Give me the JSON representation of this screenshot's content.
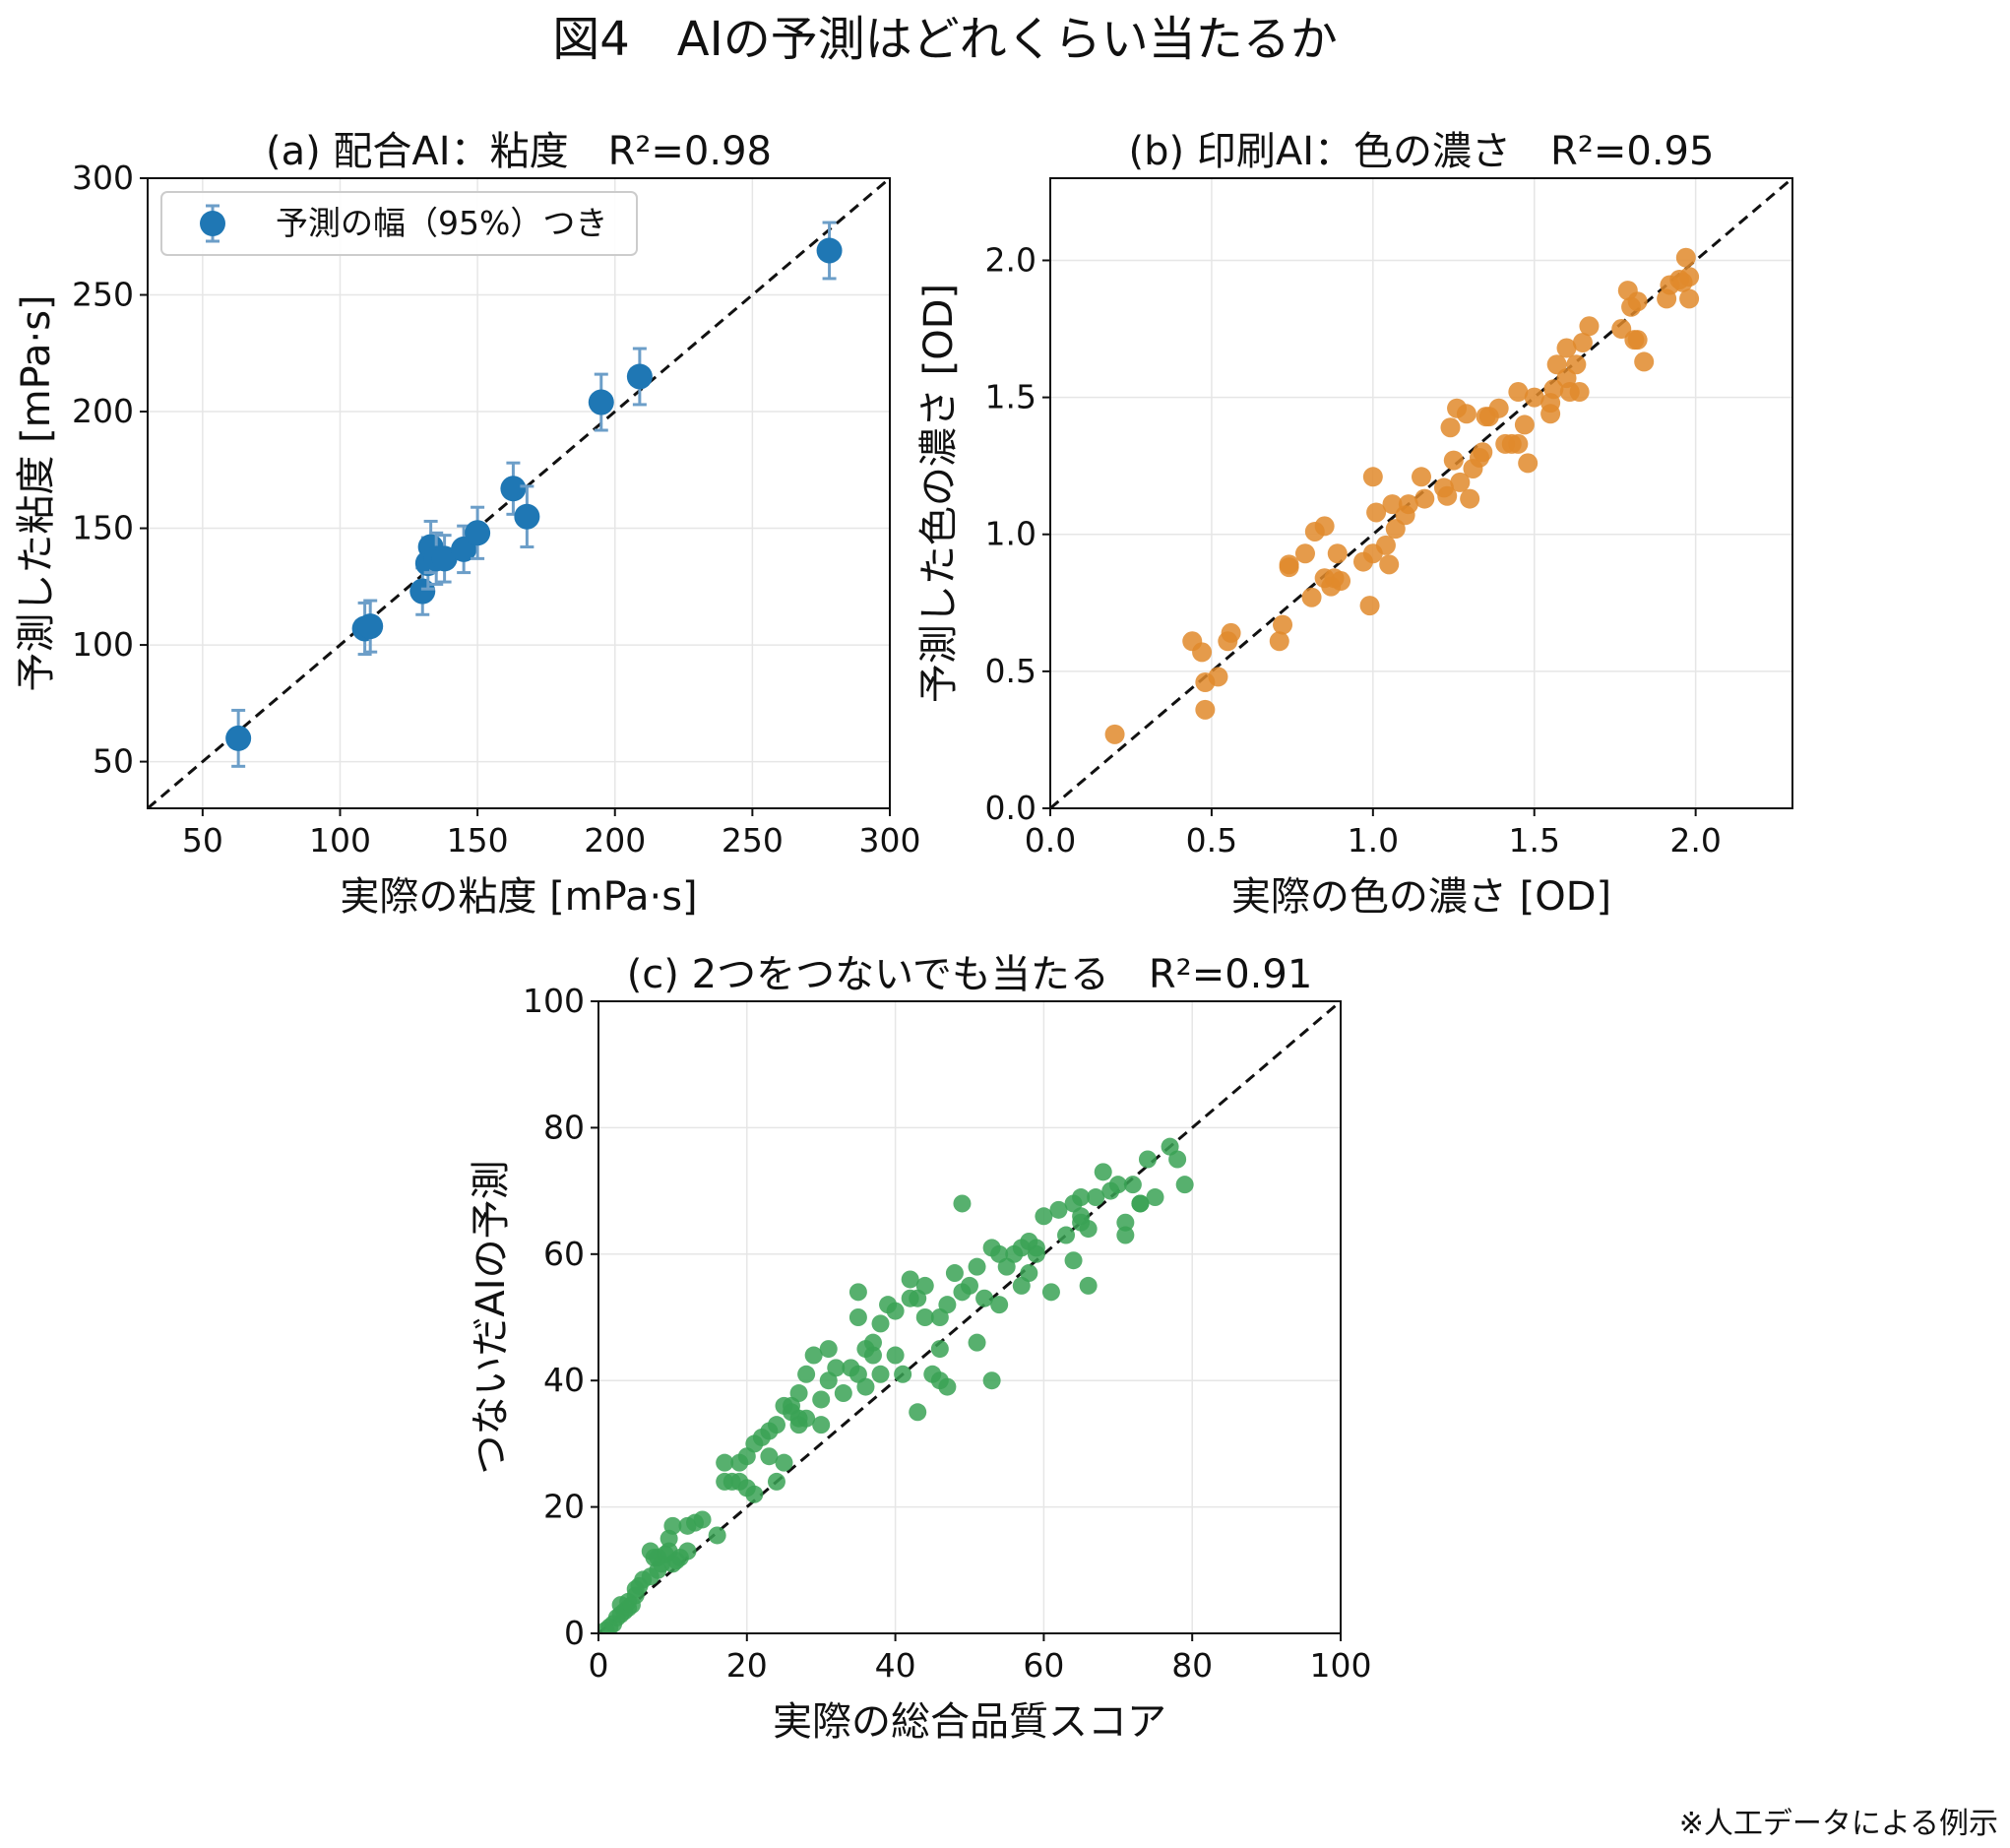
{
  "figure": {
    "title": "図4　AIの予測はどれくらい当たるか",
    "footnote": "※人工データによる例示"
  },
  "colors": {
    "blue": "#1f77b4",
    "orange": "#e08a2b",
    "green": "#3aa255",
    "errorbar": "#6c9ec8",
    "grid": "#e6e6e6"
  },
  "chart_data": [
    {
      "id": "a",
      "type": "scatter",
      "title": "(a) 配合AI：粘度　R²=0.98",
      "xlabel": "実際の粘度 [mPa·s]",
      "ylabel": "予測した粘度 [mPa·s]",
      "xlim": [
        30,
        300
      ],
      "ylim": [
        30,
        300
      ],
      "xticks": [
        50,
        100,
        150,
        200,
        250,
        300
      ],
      "yticks": [
        50,
        100,
        150,
        200,
        250,
        300
      ],
      "grid": true,
      "legend": {
        "position": "top-left",
        "label": "予測の幅（95%）つき"
      },
      "identity_line": true,
      "series": [
        {
          "color": "blue",
          "error_bars": true,
          "points": [
            [
              63,
              60,
              12
            ],
            [
              109,
              107,
              11
            ],
            [
              111,
              108,
              11
            ],
            [
              130,
              123,
              10
            ],
            [
              132,
              135,
              11
            ],
            [
              133,
              142,
              11
            ],
            [
              135,
              137,
              11
            ],
            [
              138,
              137,
              10
            ],
            [
              145,
              141,
              10
            ],
            [
              150,
              148,
              11
            ],
            [
              163,
              167,
              11
            ],
            [
              168,
              155,
              13
            ],
            [
              195,
              204,
              12
            ],
            [
              209,
              215,
              12
            ],
            [
              278,
              269,
              12
            ]
          ]
        }
      ]
    },
    {
      "id": "b",
      "type": "scatter",
      "title": "(b) 印刷AI：色の濃さ　R²=0.95",
      "xlabel": "実際の色の濃さ [OD]",
      "ylabel": "予測した色の濃さ [OD]",
      "xlim": [
        0,
        2.3
      ],
      "ylim": [
        0,
        2.3
      ],
      "xticks": [
        0.0,
        0.5,
        1.0,
        1.5,
        2.0
      ],
      "yticks": [
        0.0,
        0.5,
        1.0,
        1.5,
        2.0
      ],
      "tick_format": "fixed1",
      "grid": true,
      "identity_line": true,
      "series": [
        {
          "color": "orange",
          "points": [
            [
              0.2,
              0.27
            ],
            [
              0.44,
              0.61
            ],
            [
              0.47,
              0.57
            ],
            [
              0.48,
              0.46
            ],
            [
              0.48,
              0.36
            ],
            [
              0.52,
              0.48
            ],
            [
              0.55,
              0.61
            ],
            [
              0.56,
              0.64
            ],
            [
              0.71,
              0.61
            ],
            [
              0.72,
              0.67
            ],
            [
              0.74,
              0.89
            ],
            [
              0.74,
              0.88
            ],
            [
              0.79,
              0.93
            ],
            [
              0.81,
              0.77
            ],
            [
              0.82,
              1.01
            ],
            [
              0.85,
              0.84
            ],
            [
              0.85,
              1.03
            ],
            [
              0.87,
              0.81
            ],
            [
              0.88,
              0.84
            ],
            [
              0.89,
              0.93
            ],
            [
              0.9,
              0.83
            ],
            [
              0.97,
              0.9
            ],
            [
              0.99,
              0.74
            ],
            [
              1.0,
              1.21
            ],
            [
              1.0,
              0.93
            ],
            [
              1.01,
              1.08
            ],
            [
              1.04,
              0.96
            ],
            [
              1.05,
              0.89
            ],
            [
              1.06,
              1.11
            ],
            [
              1.07,
              1.02
            ],
            [
              1.1,
              1.07
            ],
            [
              1.11,
              1.11
            ],
            [
              1.15,
              1.21
            ],
            [
              1.16,
              1.13
            ],
            [
              1.22,
              1.17
            ],
            [
              1.23,
              1.14
            ],
            [
              1.24,
              1.39
            ],
            [
              1.25,
              1.27
            ],
            [
              1.26,
              1.46
            ],
            [
              1.27,
              1.19
            ],
            [
              1.29,
              1.44
            ],
            [
              1.3,
              1.13
            ],
            [
              1.31,
              1.24
            ],
            [
              1.33,
              1.28
            ],
            [
              1.34,
              1.3
            ],
            [
              1.35,
              1.43
            ],
            [
              1.36,
              1.43
            ],
            [
              1.39,
              1.46
            ],
            [
              1.41,
              1.33
            ],
            [
              1.43,
              1.33
            ],
            [
              1.45,
              1.33
            ],
            [
              1.45,
              1.52
            ],
            [
              1.47,
              1.4
            ],
            [
              1.48,
              1.26
            ],
            [
              1.5,
              1.5
            ],
            [
              1.55,
              1.44
            ],
            [
              1.55,
              1.48
            ],
            [
              1.56,
              1.53
            ],
            [
              1.57,
              1.62
            ],
            [
              1.6,
              1.57
            ],
            [
              1.6,
              1.68
            ],
            [
              1.61,
              1.52
            ],
            [
              1.63,
              1.62
            ],
            [
              1.64,
              1.52
            ],
            [
              1.65,
              1.7
            ],
            [
              1.67,
              1.76
            ],
            [
              1.77,
              1.75
            ],
            [
              1.79,
              1.89
            ],
            [
              1.8,
              1.83
            ],
            [
              1.81,
              1.71
            ],
            [
              1.82,
              1.85
            ],
            [
              1.82,
              1.71
            ],
            [
              1.84,
              1.63
            ],
            [
              1.91,
              1.86
            ],
            [
              1.92,
              1.91
            ],
            [
              1.95,
              1.93
            ],
            [
              1.96,
              1.92
            ],
            [
              1.97,
              2.01
            ],
            [
              1.98,
              1.94
            ],
            [
              1.98,
              1.86
            ]
          ]
        }
      ]
    },
    {
      "id": "c",
      "type": "scatter",
      "title": "(c) 2つをつないでも当たる　R²=0.91",
      "xlabel": "実際の総合品質スコア",
      "ylabel": "つないだAIの予測",
      "xlim": [
        0,
        100
      ],
      "ylim": [
        0,
        100
      ],
      "xticks": [
        0,
        20,
        40,
        60,
        80,
        100
      ],
      "yticks": [
        0,
        20,
        40,
        60,
        80,
        100
      ],
      "grid": true,
      "identity_line": true,
      "series": [
        {
          "color": "green",
          "points": [
            [
              1,
              0.5
            ],
            [
              1.5,
              1
            ],
            [
              2,
              1.5
            ],
            [
              2.5,
              2.5
            ],
            [
              3,
              3
            ],
            [
              3.5,
              3.5
            ],
            [
              3,
              4.5
            ],
            [
              4,
              4
            ],
            [
              4,
              5
            ],
            [
              4.5,
              4.5
            ],
            [
              5,
              6
            ],
            [
              5,
              7
            ],
            [
              5.5,
              7.5
            ],
            [
              6,
              8.5
            ],
            [
              7,
              9
            ],
            [
              7,
              13
            ],
            [
              7.5,
              12
            ],
            [
              8,
              10
            ],
            [
              8,
              12
            ],
            [
              8.5,
              11
            ],
            [
              9,
              12.5
            ],
            [
              9.5,
              13
            ],
            [
              9.5,
              15
            ],
            [
              10,
              11
            ],
            [
              10,
              17
            ],
            [
              10.5,
              11.5
            ],
            [
              11,
              12
            ],
            [
              12,
              13
            ],
            [
              12,
              17
            ],
            [
              13,
              17.5
            ],
            [
              14,
              18
            ],
            [
              16,
              15.5
            ],
            [
              17,
              27
            ],
            [
              17,
              24
            ],
            [
              18,
              24
            ],
            [
              19,
              27
            ],
            [
              19,
              24
            ],
            [
              20,
              28
            ],
            [
              20,
              23
            ],
            [
              21,
              30
            ],
            [
              21,
              22
            ],
            [
              22,
              31
            ],
            [
              23,
              32
            ],
            [
              23,
              28
            ],
            [
              24,
              33
            ],
            [
              24,
              24
            ],
            [
              25,
              36
            ],
            [
              25,
              27
            ],
            [
              26,
              36
            ],
            [
              26,
              35
            ],
            [
              27,
              38
            ],
            [
              27,
              34
            ],
            [
              27,
              33
            ],
            [
              28,
              41
            ],
            [
              28,
              34
            ],
            [
              29,
              44
            ],
            [
              30,
              37
            ],
            [
              30,
              33
            ],
            [
              31,
              45
            ],
            [
              31,
              40
            ],
            [
              32,
              42
            ],
            [
              33,
              38
            ],
            [
              34,
              42
            ],
            [
              35,
              50
            ],
            [
              35,
              41
            ],
            [
              35,
              54
            ],
            [
              36,
              45
            ],
            [
              36,
              39
            ],
            [
              37,
              46
            ],
            [
              37,
              44
            ],
            [
              38,
              49
            ],
            [
              38,
              41
            ],
            [
              39,
              52
            ],
            [
              40,
              51
            ],
            [
              40,
              44
            ],
            [
              41,
              41
            ],
            [
              42,
              56
            ],
            [
              42,
              53
            ],
            [
              43,
              53
            ],
            [
              43,
              35
            ],
            [
              44,
              55
            ],
            [
              44,
              50
            ],
            [
              45,
              41
            ],
            [
              46,
              50
            ],
            [
              46,
              45
            ],
            [
              46,
              40
            ],
            [
              47,
              52
            ],
            [
              47,
              39
            ],
            [
              48,
              57
            ],
            [
              49,
              68
            ],
            [
              49,
              54
            ],
            [
              50,
              55
            ],
            [
              51,
              58
            ],
            [
              51,
              46
            ],
            [
              52,
              53
            ],
            [
              53,
              61
            ],
            [
              53,
              40
            ],
            [
              54,
              60
            ],
            [
              54,
              52
            ],
            [
              55,
              58
            ],
            [
              56,
              60
            ],
            [
              57,
              55
            ],
            [
              57,
              61
            ],
            [
              58,
              62
            ],
            [
              58,
              57
            ],
            [
              59,
              61
            ],
            [
              59,
              60
            ],
            [
              60,
              66
            ],
            [
              61,
              54
            ],
            [
              62,
              67
            ],
            [
              63,
              63
            ],
            [
              64,
              68
            ],
            [
              64,
              59
            ],
            [
              65,
              69
            ],
            [
              65,
              66
            ],
            [
              65,
              65
            ],
            [
              66,
              64
            ],
            [
              66,
              55
            ],
            [
              67,
              69
            ],
            [
              68,
              73
            ],
            [
              69,
              70
            ],
            [
              70,
              71
            ],
            [
              71,
              65
            ],
            [
              71,
              63
            ],
            [
              72,
              71
            ],
            [
              73,
              68
            ],
            [
              73,
              68
            ],
            [
              74,
              75
            ],
            [
              75,
              69
            ],
            [
              77,
              77
            ],
            [
              78,
              75
            ],
            [
              79,
              71
            ]
          ]
        }
      ]
    }
  ]
}
